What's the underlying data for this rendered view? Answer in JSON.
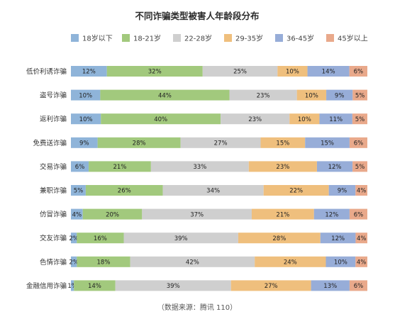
{
  "chart_data": {
    "type": "bar",
    "orientation": "horizontal",
    "stacked": "percent",
    "title": "不同诈骗类型被害人年龄段分布",
    "source": "（数据来源：腾讯 110）",
    "legend_position": "top",
    "categories": [
      "低价利诱诈骗",
      "盗号诈骗",
      "返利诈骗",
      "免费送诈骗",
      "交易诈骗",
      "兼职诈骗",
      "仿冒诈骗",
      "交友诈骗",
      "色情诈骗",
      "金融信用诈骗"
    ],
    "xlim": [
      0,
      100
    ],
    "series": [
      {
        "name": "18岁以下",
        "color": "#8fb4d9",
        "values": [
          12,
          10,
          10,
          9,
          6,
          5,
          4,
          2,
          2,
          1
        ]
      },
      {
        "name": "18-21岁",
        "color": "#a2c97d",
        "values": [
          32,
          44,
          40,
          28,
          21,
          26,
          20,
          16,
          18,
          14
        ]
      },
      {
        "name": "22-28岁",
        "color": "#cfcfcf",
        "values": [
          25,
          23,
          23,
          27,
          33,
          34,
          37,
          39,
          42,
          39
        ]
      },
      {
        "name": "29-35岁",
        "color": "#efbf7d",
        "values": [
          10,
          10,
          10,
          15,
          23,
          22,
          21,
          28,
          24,
          27
        ]
      },
      {
        "name": "36-45岁",
        "color": "#97add8",
        "values": [
          14,
          9,
          11,
          15,
          12,
          9,
          12,
          12,
          10,
          13
        ]
      },
      {
        "name": "45岁以上",
        "color": "#e9a98b",
        "values": [
          6,
          5,
          5,
          6,
          5,
          4,
          6,
          4,
          4,
          6
        ]
      }
    ]
  }
}
